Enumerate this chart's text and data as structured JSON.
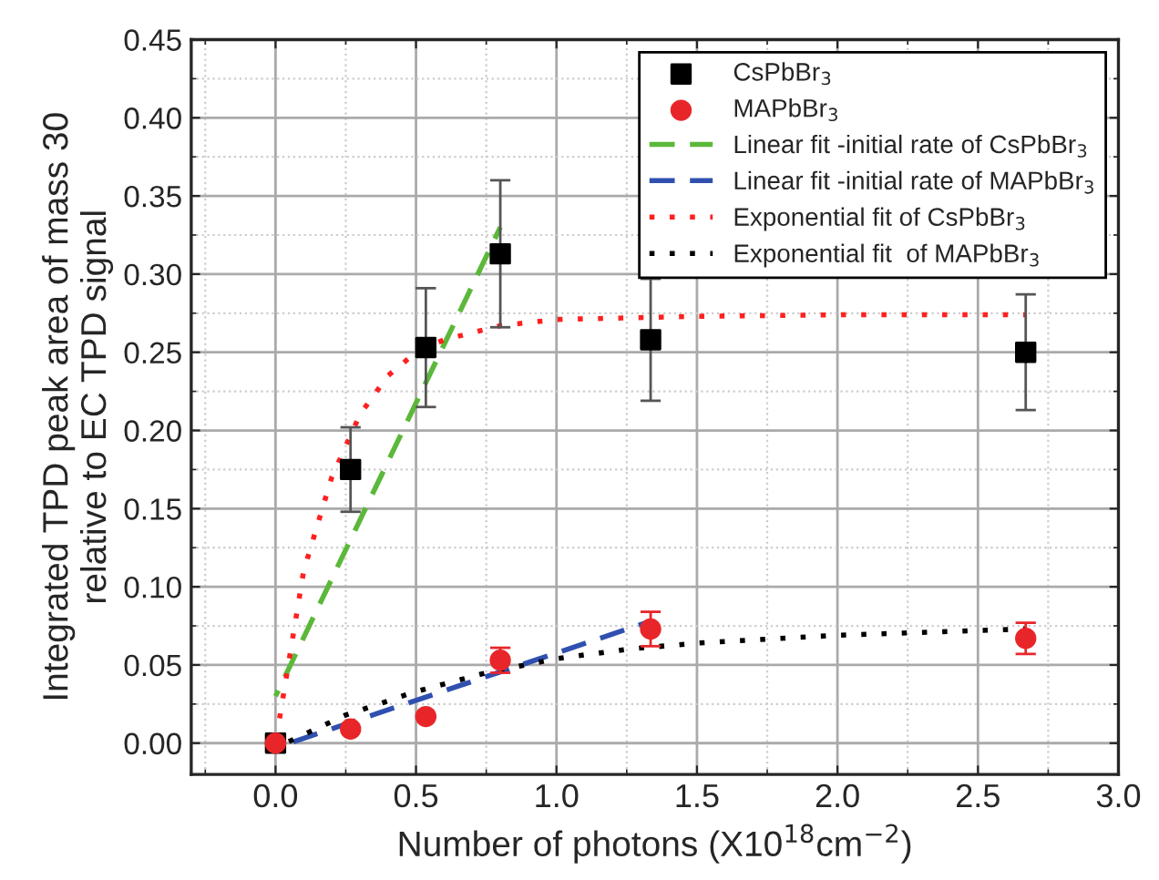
{
  "chart_data": {
    "type": "scatter",
    "xlabel": "Number of photons (X10$^{18}$cm$^{−2}$)",
    "ylabel": "Integrated TPD peak area of mass 30\nrelative to EC TPD signal",
    "xlim": [
      -0.3,
      3.0
    ],
    "xticks": [
      "0.0",
      0.5,
      "1.0",
      1.5,
      "2.0",
      2.5,
      "3.0"
    ],
    "ylim": [
      -0.02,
      0.45
    ],
    "yticks": [
      "0.00",
      0.05,
      "0.10",
      0.15,
      "0.20",
      0.25,
      "0.30",
      0.35,
      "0.40",
      0.45
    ],
    "grid": true,
    "legend": "top right",
    "series": [
      {
        "name": "CsPbBr$_{3}$",
        "marker": "square",
        "color": "#000000",
        "x": [
          0,
          0.267,
          0.535,
          0.8,
          1.335,
          2.67
        ],
        "values": [
          0,
          0.175,
          0.253,
          0.313,
          0.258,
          0.25
        ],
        "errors": [
          null,
          0.027,
          0.038,
          0.047,
          0.039,
          0.037
        ]
      },
      {
        "name": "MAPbBr$_{3}$",
        "marker": "circle",
        "color": "#e8262a",
        "x": [
          0,
          0.267,
          0.535,
          0.8,
          1.335,
          2.67
        ],
        "values": [
          0,
          0.009,
          0.017,
          0.053,
          0.073,
          0.067
        ],
        "errors": [
          null,
          null,
          null,
          0.008,
          0.011,
          0.01
        ]
      },
      {
        "name": "Linear fit -initial rate of CsPbBr$_{3}$",
        "type": "line",
        "line_style": "dashed",
        "color": "#5bb83a",
        "x": [
          0,
          0.8
        ],
        "values": [
          0.03,
          0.33
        ]
      },
      {
        "name": "Linear fit -initial rate of MAPbBr$_{3}$",
        "type": "line",
        "line_style": "dashed",
        "color": "#3050b0",
        "x": [
          0,
          1.335
        ],
        "values": [
          -0.003,
          0.078
        ]
      },
      {
        "name": "Exponential fit of CsPbBr$_{3}$",
        "type": "line",
        "line_style": "dotted",
        "color": "#ff2020",
        "x": [
          0,
          0.1,
          0.2,
          0.3,
          0.4,
          0.5,
          0.6,
          0.8,
          1.0,
          1.5,
          2.0,
          2.67
        ],
        "values": [
          0,
          0.11,
          0.17,
          0.21,
          0.235,
          0.25,
          0.258,
          0.267,
          0.271,
          0.273,
          0.274,
          0.274
        ]
      },
      {
        "name": "Exponential fit  of MAPbBr$_{3}$",
        "type": "line",
        "line_style": "dotted",
        "color": "#000000",
        "x": [
          0,
          0.25,
          0.5,
          0.75,
          1.0,
          1.25,
          1.5,
          2.0,
          2.5,
          2.67
        ],
        "values": [
          -0.003,
          0.018,
          0.033,
          0.045,
          0.054,
          0.06,
          0.064,
          0.069,
          0.072,
          0.073
        ]
      }
    ]
  }
}
